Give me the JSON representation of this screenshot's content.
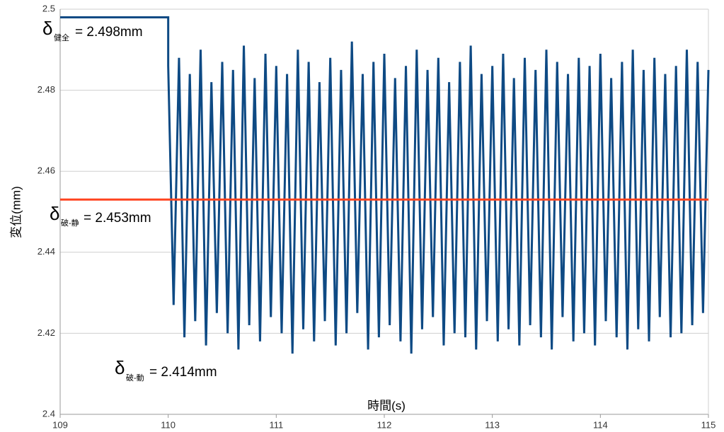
{
  "chart_data": {
    "type": "line",
    "y_label": "変位(mm)",
    "x_label": "時間(s)",
    "xlim": [
      109,
      115
    ],
    "xticks": [
      109,
      110,
      111,
      112,
      113,
      114,
      115
    ],
    "ylim": [
      2.4,
      2.5
    ],
    "yticks": [
      2.4,
      2.42,
      2.44,
      2.46,
      2.48,
      2.5
    ],
    "grid": true,
    "series": [
      {
        "color": "#0e4a84",
        "x": [
          109,
          110,
          110,
          110.05,
          110.1,
          110.15,
          110.2,
          110.25,
          110.3,
          110.35,
          110.4,
          110.45,
          110.5,
          110.55,
          110.6,
          110.65,
          110.7,
          110.75,
          110.8,
          110.85,
          110.9,
          110.95,
          111,
          111.05,
          111.1,
          111.15,
          111.2,
          111.25,
          111.3,
          111.35,
          111.4,
          111.45,
          111.5,
          111.55,
          111.6,
          111.65,
          111.7,
          111.75,
          111.8,
          111.85,
          111.9,
          111.95,
          112,
          112.05,
          112.1,
          112.15,
          112.2,
          112.25,
          112.3,
          112.35,
          112.4,
          112.45,
          112.5,
          112.55,
          112.6,
          112.65,
          112.7,
          112.75,
          112.8,
          112.85,
          112.9,
          112.95,
          113,
          113.05,
          113.1,
          113.15,
          113.2,
          113.25,
          113.3,
          113.35,
          113.4,
          113.45,
          113.5,
          113.55,
          113.6,
          113.65,
          113.7,
          113.75,
          113.8,
          113.85,
          113.9,
          113.95,
          114,
          114.05,
          114.1,
          114.15,
          114.2,
          114.25,
          114.3,
          114.35,
          114.4,
          114.45,
          114.5,
          114.55,
          114.6,
          114.65,
          114.7,
          114.75,
          114.8,
          114.85,
          114.9,
          114.95,
          115
        ],
        "values": [
          2.498,
          2.498,
          2.486,
          2.427,
          2.488,
          2.419,
          2.484,
          2.423,
          2.49,
          2.417,
          2.482,
          2.425,
          2.487,
          2.42,
          2.485,
          2.416,
          2.491,
          2.422,
          2.483,
          2.418,
          2.489,
          2.424,
          2.486,
          2.42,
          2.484,
          2.415,
          2.49,
          2.421,
          2.487,
          2.418,
          2.482,
          2.423,
          2.488,
          2.417,
          2.485,
          2.42,
          2.492,
          2.425,
          2.484,
          2.416,
          2.487,
          2.419,
          2.489,
          2.422,
          2.483,
          2.418,
          2.486,
          2.415,
          2.49,
          2.421,
          2.485,
          2.424,
          2.488,
          2.417,
          2.482,
          2.42,
          2.487,
          2.419,
          2.491,
          2.416,
          2.484,
          2.423,
          2.486,
          2.418,
          2.489,
          2.421,
          2.483,
          2.417,
          2.488,
          2.422,
          2.485,
          2.419,
          2.49,
          2.416,
          2.487,
          2.424,
          2.484,
          2.418,
          2.488,
          2.42,
          2.486,
          2.417,
          2.489,
          2.423,
          2.483,
          2.419,
          2.487,
          2.416,
          2.49,
          2.421,
          2.485,
          2.418,
          2.488,
          2.424,
          2.484,
          2.419,
          2.486,
          2.42,
          2.49,
          2.422,
          2.487,
          2.425,
          2.485
        ]
      },
      {
        "color": "#ff4420",
        "x": [
          109,
          115
        ],
        "values": [
          2.453,
          2.453
        ]
      }
    ],
    "annotations": [
      {
        "symbol": "δ",
        "subscript": "健全",
        "text": "= 2.498mm"
      },
      {
        "symbol": "δ",
        "subscript": "破-静",
        "text": "= 2.453mm"
      },
      {
        "symbol": "δ",
        "subscript": "破-動",
        "text": "= 2.414mm"
      }
    ]
  }
}
